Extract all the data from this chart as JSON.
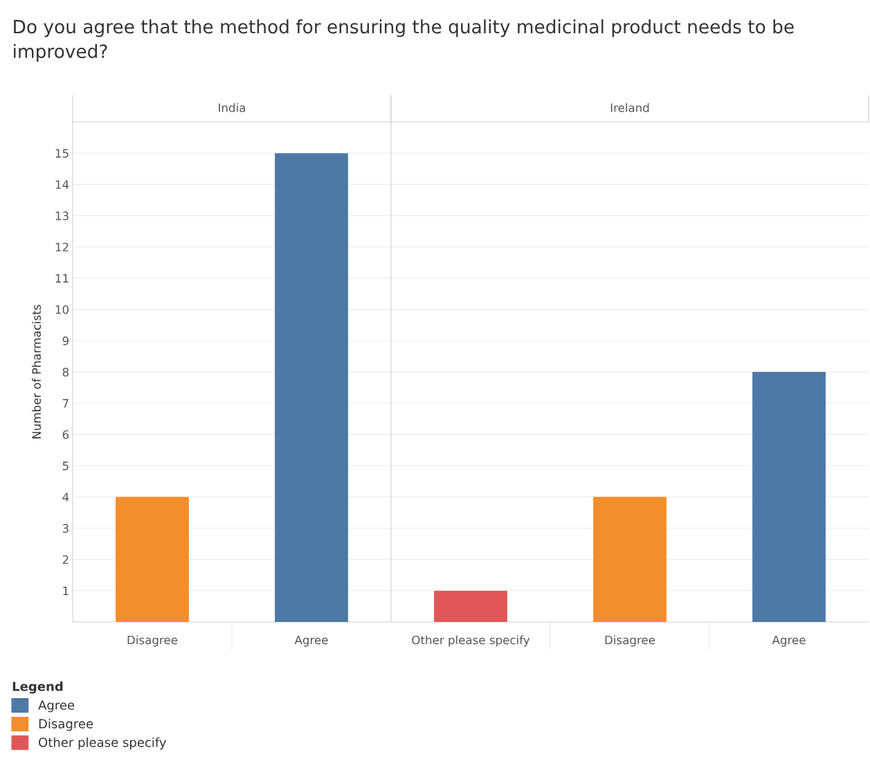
{
  "chart_data": [
    {
      "type": "bar",
      "title": "Do you agree that the method for ensuring the quality medicinal product needs to be improved?",
      "subtitle": "India",
      "ylabel": "Number of Pharmacists",
      "categories": [
        "Disagree",
        "Agree"
      ],
      "ylim": [
        0,
        16
      ],
      "yticks": [
        1,
        2,
        3,
        4,
        5,
        6,
        7,
        8,
        9,
        10,
        11,
        12,
        13,
        14,
        15
      ],
      "grid": "y",
      "values": [
        4,
        15
      ],
      "colors": [
        "#f28e2b",
        "#4e79a7"
      ]
    },
    {
      "type": "bar",
      "subtitle": "Ireland",
      "categories": [
        "Other please specify",
        "Disagree",
        "Agree"
      ],
      "ylim": [
        0,
        16
      ],
      "yticks": [
        1,
        2,
        3,
        4,
        5,
        6,
        7,
        8,
        9,
        10,
        11,
        12,
        13,
        14,
        15
      ],
      "grid": "y",
      "tick_labels": "x",
      "legend": "bottom left",
      "legend_title": "Legend",
      "series": [
        {
          "name": "Agree",
          "color": "#4e79a7",
          "values": [
            null,
            null,
            8
          ]
        },
        {
          "name": "Disagree",
          "color": "#f28e2b",
          "values": [
            null,
            4,
            null
          ]
        },
        {
          "name": "Other please specify",
          "color": "#e15759",
          "values": [
            1,
            null,
            null
          ]
        }
      ]
    }
  ]
}
